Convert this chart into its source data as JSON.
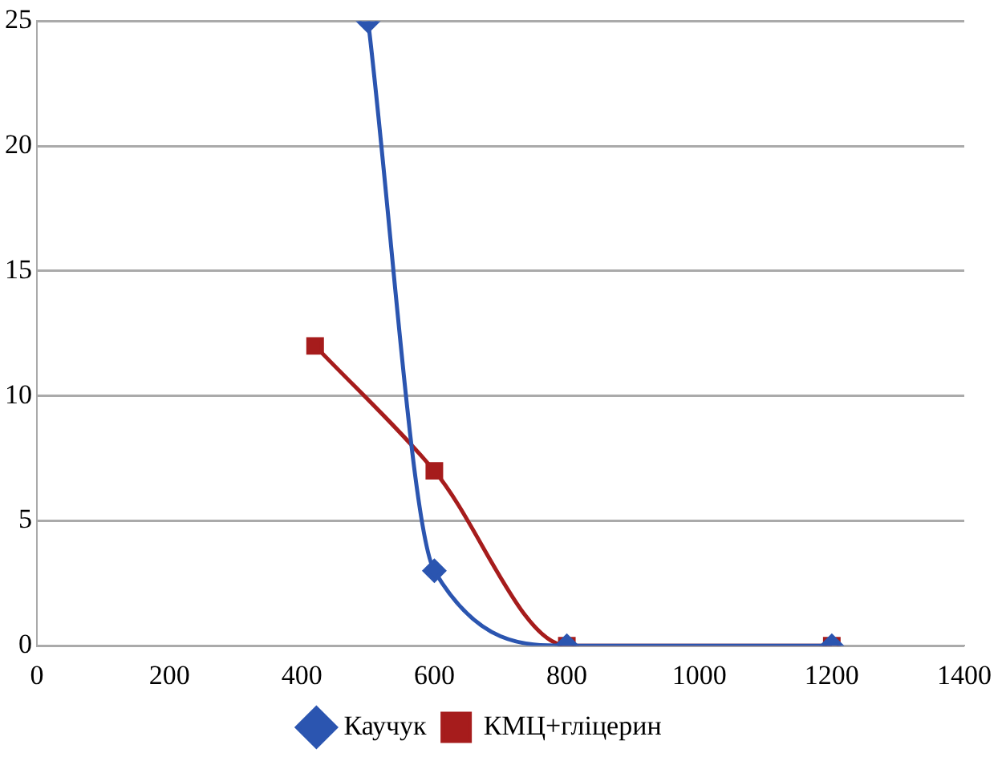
{
  "chart_data": {
    "type": "line",
    "xlim": [
      0,
      1400
    ],
    "xticks": [
      0,
      200,
      400,
      600,
      800,
      1000,
      1200,
      1400
    ],
    "ylim": [
      0,
      25
    ],
    "yticks": [
      0,
      5,
      10,
      15,
      20,
      25
    ],
    "grid": "y",
    "legend": "bottom",
    "series": [
      {
        "name": "Каучук",
        "color": "#2b55b0",
        "marker": "diamond",
        "x": [
          500,
          600,
          800,
          1200
        ],
        "values": [
          25,
          3,
          0,
          0
        ]
      },
      {
        "name": "КМЦ+гліцерин",
        "color": "#a61c1c",
        "marker": "square",
        "x": [
          420,
          600,
          800,
          1200
        ],
        "values": [
          12,
          7,
          0,
          0
        ]
      }
    ]
  }
}
